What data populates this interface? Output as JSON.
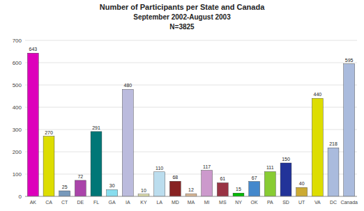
{
  "chart_data": {
    "type": "bar",
    "title": "Number of Participants per State and Canada",
    "subtitle": [
      "September 2002-August 2003",
      "N=3825"
    ],
    "categories": [
      "AK",
      "CA",
      "CT",
      "DE",
      "FL",
      "GA",
      "IA",
      "KY",
      "LA",
      "MD",
      "MA",
      "MI",
      "MS",
      "NY",
      "OK",
      "PA",
      "SD",
      "UT",
      "VA",
      "DC",
      "Canada"
    ],
    "values": [
      643,
      270,
      25,
      72,
      291,
      30,
      480,
      10,
      110,
      68,
      12,
      117,
      61,
      15,
      67,
      111,
      150,
      40,
      440,
      218,
      595
    ],
    "colors": [
      "#dd00bb",
      "#dddd00",
      "#7799bb",
      "#aa44aa",
      "#007777",
      "#88ddee",
      "#bbbbdd",
      "#ddddaa",
      "#bbddee",
      "#882222",
      "#ddbb99",
      "#cc99cc",
      "#993344",
      "#00bb00",
      "#4488cc",
      "#88cc33",
      "#223399",
      "#ccaa33",
      "#dddd00",
      "#aabbdd",
      "#aabbdd"
    ],
    "ylim": [
      0,
      700
    ],
    "yticks": [
      0,
      100,
      200,
      300,
      400,
      500,
      600,
      700
    ],
    "grid": true,
    "data_labels": true
  }
}
